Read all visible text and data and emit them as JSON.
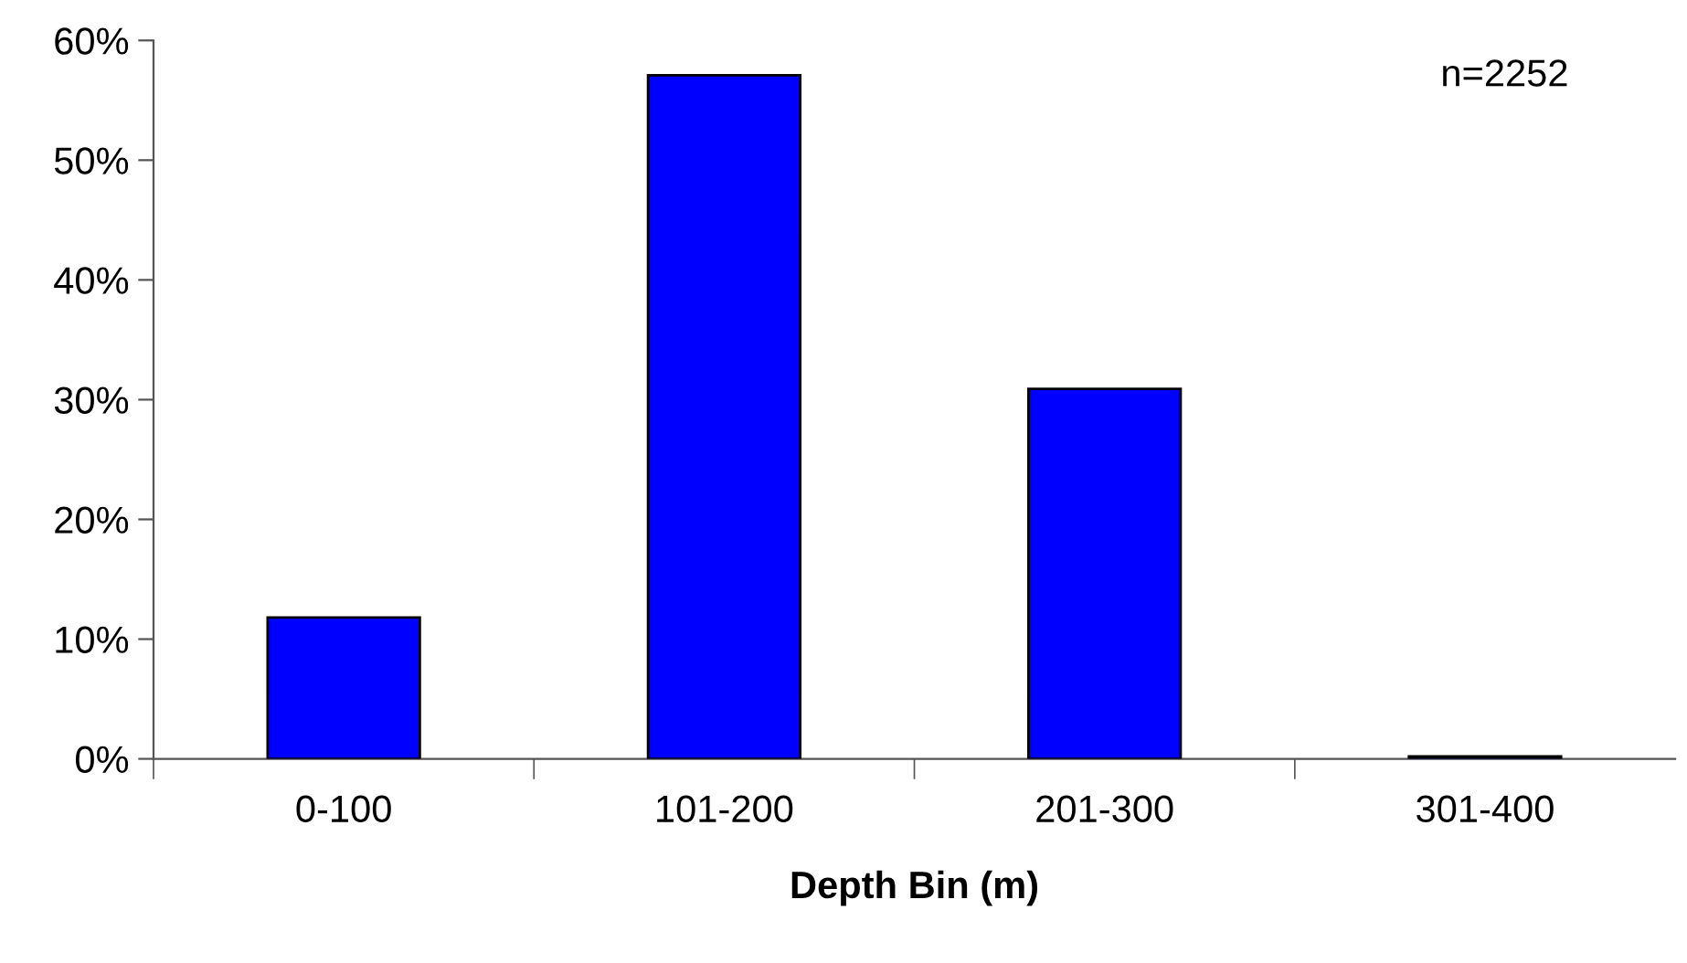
{
  "chart_data": {
    "type": "bar",
    "xlabel": "Depth Bin (m)",
    "categories": [
      "0-100",
      "101-200",
      "201-300",
      "301-400"
    ],
    "values": [
      11.8,
      57.1,
      30.9,
      0.2
    ],
    "color": "#0000ff",
    "ylim": [
      0,
      60
    ],
    "yticks": [
      {
        "value": 0,
        "label": "0%"
      },
      {
        "value": 10,
        "label": "10%"
      },
      {
        "value": 20,
        "label": "20%"
      },
      {
        "value": 30,
        "label": "30%"
      },
      {
        "value": 40,
        "label": "40%"
      },
      {
        "value": 50,
        "label": "50%"
      },
      {
        "value": 60,
        "label": "60%"
      }
    ],
    "annotations": [
      "n=2252"
    ]
  }
}
